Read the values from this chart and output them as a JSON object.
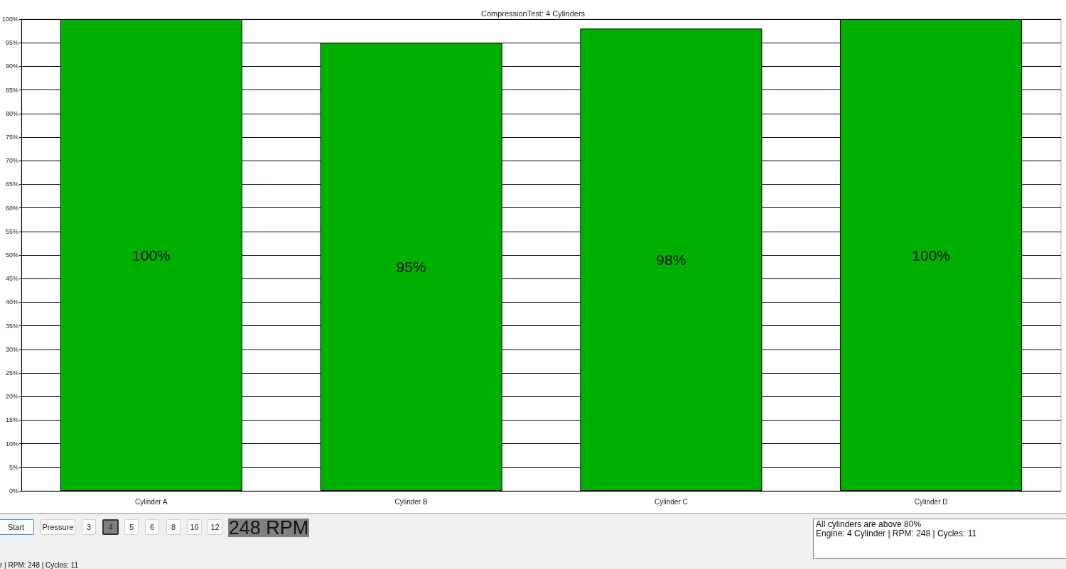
{
  "chart_data": {
    "type": "bar",
    "title": "CompressionTest: 4 Cylinders",
    "categories": [
      "Cylinder A",
      "Cylinder B",
      "Cylinder C",
      "Cylinder D"
    ],
    "values": [
      100,
      95,
      98,
      100
    ],
    "value_labels": [
      "100%",
      "95%",
      "98%",
      "100%"
    ],
    "color": "#00b000",
    "ylim": [
      0,
      100
    ],
    "yticks": [
      {
        "value": 0,
        "label": "0%"
      },
      {
        "value": 5,
        "label": "5%"
      },
      {
        "value": 10,
        "label": "10%"
      },
      {
        "value": 15,
        "label": "15%"
      },
      {
        "value": 20,
        "label": "20%"
      },
      {
        "value": 25,
        "label": "25%"
      },
      {
        "value": 30,
        "label": "30%"
      },
      {
        "value": 35,
        "label": "35%"
      },
      {
        "value": 40,
        "label": "40%"
      },
      {
        "value": 45,
        "label": "45%"
      },
      {
        "value": 50,
        "label": "50%"
      },
      {
        "value": 55,
        "label": "55%"
      },
      {
        "value": 60,
        "label": "60%"
      },
      {
        "value": 65,
        "label": "65%"
      },
      {
        "value": 70,
        "label": "70%"
      },
      {
        "value": 75,
        "label": "75%"
      },
      {
        "value": 80,
        "label": "80%"
      },
      {
        "value": 85,
        "label": "85%"
      },
      {
        "value": 90,
        "label": "90%"
      },
      {
        "value": 95,
        "label": "95%"
      },
      {
        "value": 100,
        "label": "100%"
      }
    ],
    "grid": "y",
    "annotations": [
      "Start",
      "Pressure",
      "3",
      "4",
      "5",
      "6",
      "8",
      "10",
      "12",
      "248 RPM",
      "All cylinders are above 80%",
      "Engine: 4 Cylinder | RPM: 248 | Cycles: 11",
      "r | RPM: 248 | Cycles: 11"
    ]
  }
}
